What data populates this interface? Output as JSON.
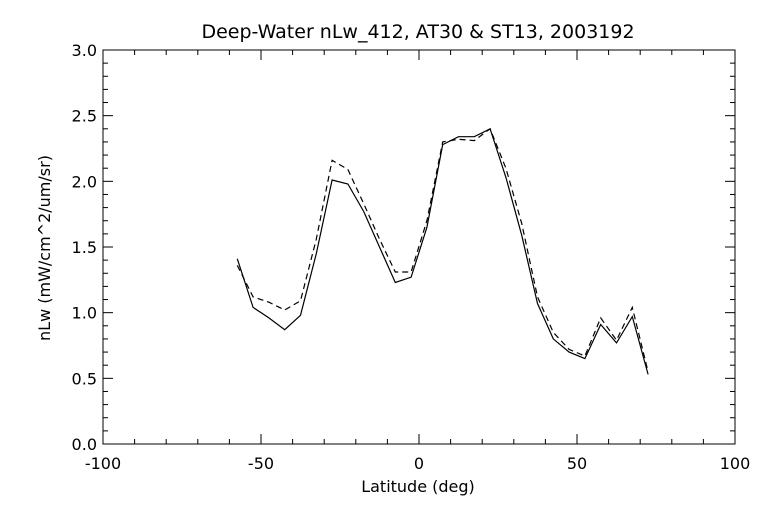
{
  "chart_data": {
    "type": "line",
    "title": "Deep-Water nLw_412, AT30 & ST13, 2003192",
    "xlabel": "Latitude (deg)",
    "ylabel": "nLw (mW/cm^2/um/sr)",
    "xlim": [
      -100,
      100
    ],
    "ylim": [
      0.0,
      3.0
    ],
    "xticks": [
      "-100",
      "-50",
      "0",
      "50",
      "100"
    ],
    "yticks": [
      "0.0",
      "0.5",
      "1.0",
      "1.5",
      "2.0",
      "2.5",
      "3.0"
    ],
    "grid": false,
    "series": [
      {
        "style": "solid",
        "x": [
          -57.5,
          -52.5,
          -47.5,
          -42.5,
          -37.5,
          -32.5,
          -27.5,
          -22.5,
          -17.5,
          -12.5,
          -7.5,
          -2.5,
          2.5,
          7.5,
          12.5,
          17.5,
          22.5,
          27.5,
          32.5,
          37.5,
          42.5,
          47.5,
          52.5,
          57.5,
          62.5,
          67.5,
          72.5
        ],
        "y": [
          1.41,
          1.04,
          0.96,
          0.87,
          0.98,
          1.45,
          2.01,
          1.98,
          1.77,
          1.5,
          1.23,
          1.27,
          1.65,
          2.28,
          2.34,
          2.34,
          2.4,
          2.03,
          1.59,
          1.07,
          0.8,
          0.7,
          0.65,
          0.91,
          0.77,
          0.97,
          0.53
        ]
      },
      {
        "style": "dashed",
        "x": [
          -57.5,
          -52.5,
          -47.5,
          -42.5,
          -37.5,
          -32.5,
          -27.5,
          -22.5,
          -17.5,
          -12.5,
          -7.5,
          -2.5,
          2.5,
          7.5,
          12.5,
          17.5,
          22.5,
          27.5,
          32.5,
          37.5,
          42.5,
          47.5,
          52.5,
          57.5,
          62.5,
          67.5,
          72.5
        ],
        "y": [
          1.36,
          1.12,
          1.08,
          1.02,
          1.09,
          1.56,
          2.16,
          2.09,
          1.83,
          1.56,
          1.31,
          1.31,
          1.7,
          2.3,
          2.32,
          2.31,
          2.4,
          2.1,
          1.68,
          1.12,
          0.85,
          0.72,
          0.67,
          0.96,
          0.79,
          1.04,
          0.55
        ]
      }
    ]
  }
}
